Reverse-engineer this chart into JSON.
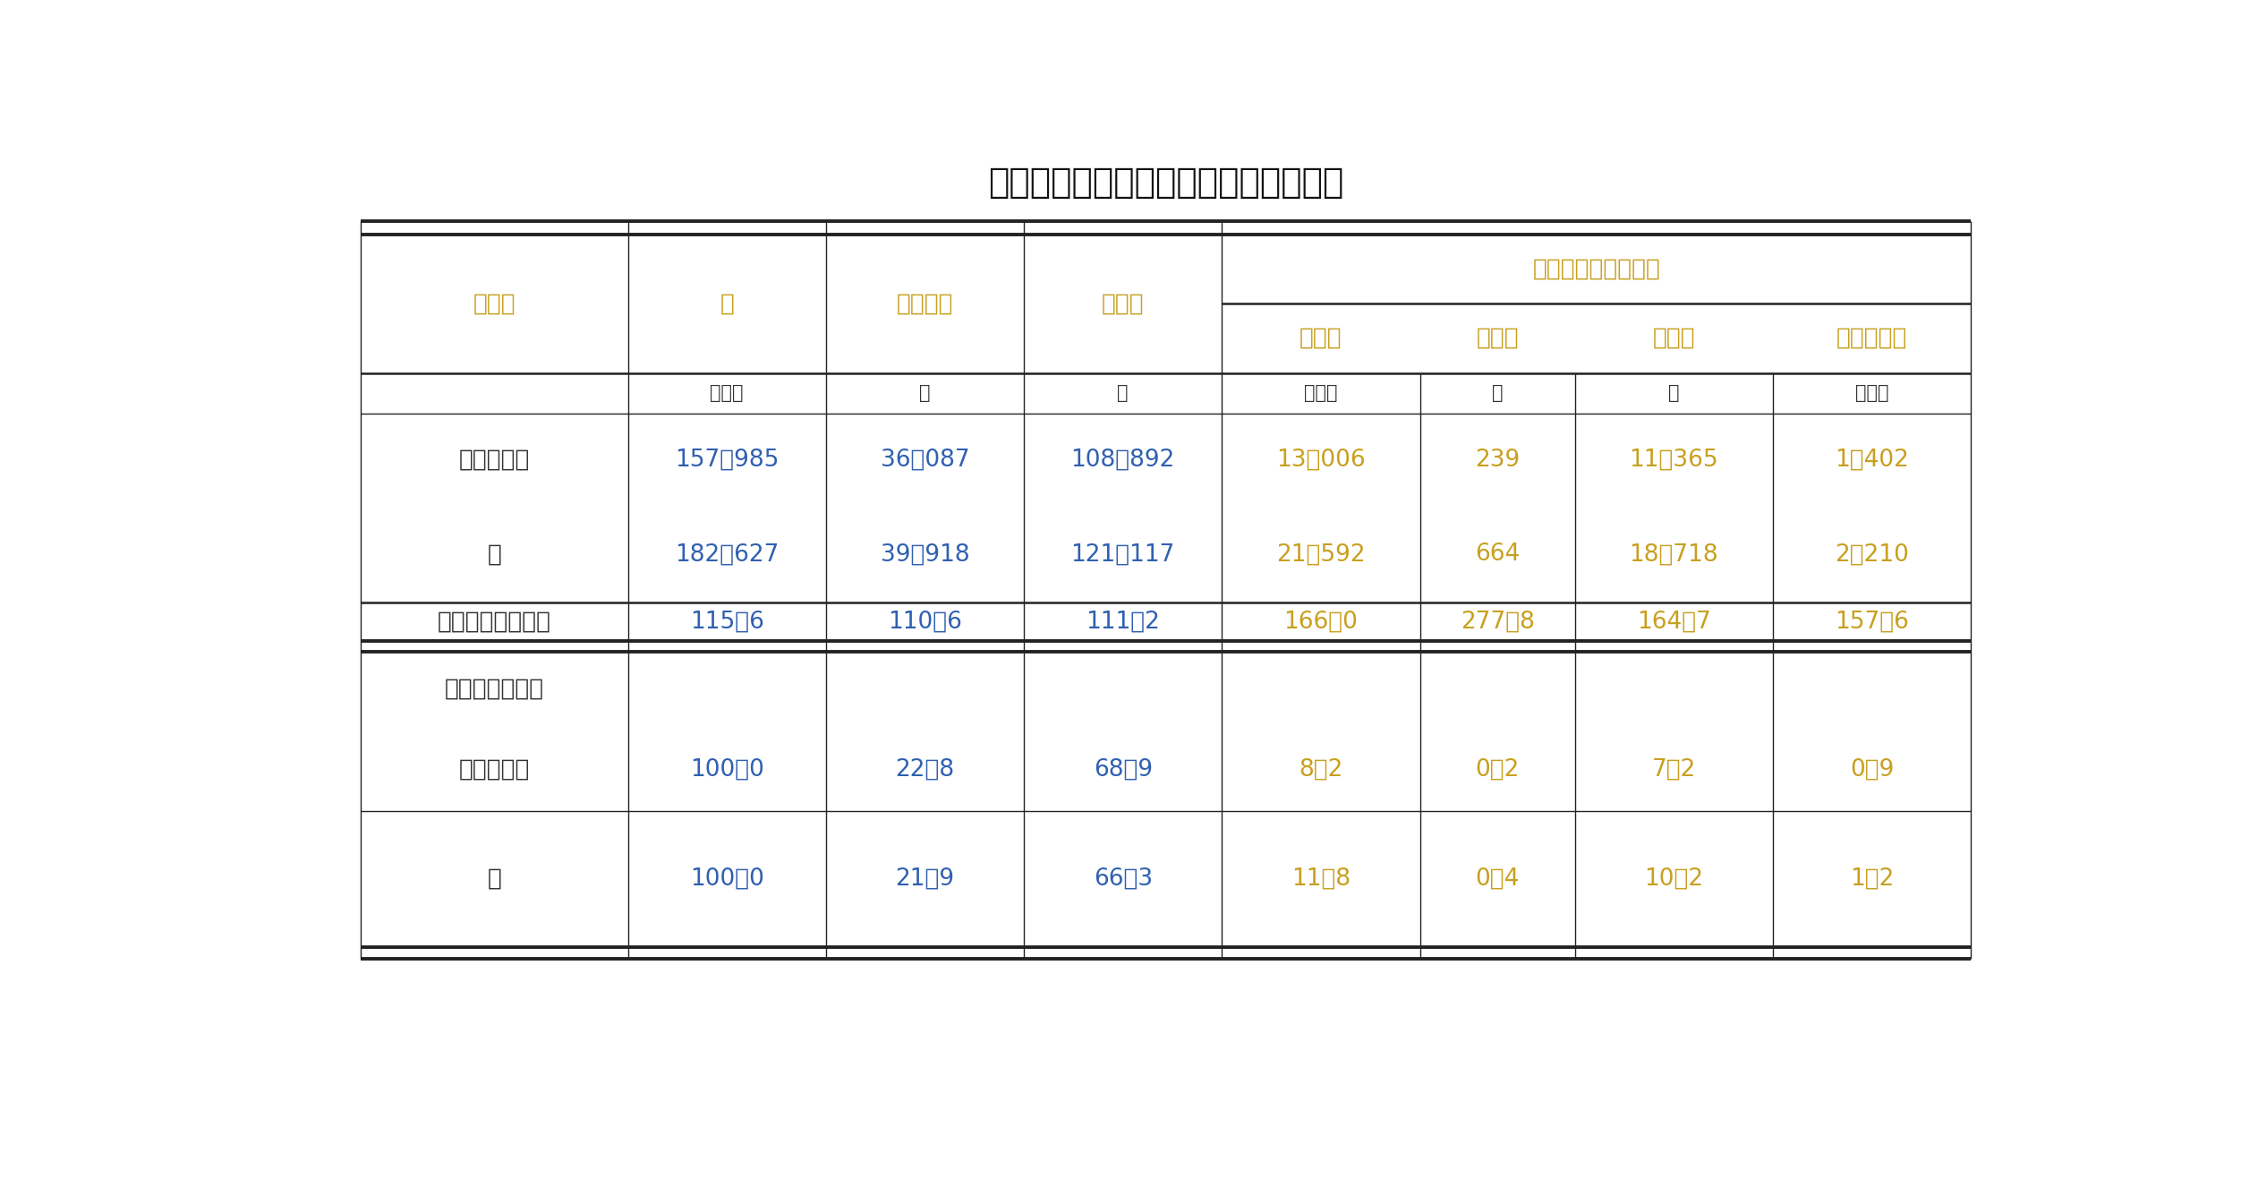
{
  "title": "表　野生鳥獣の解体頭・羽数（全国）",
  "background_color": "#ffffff",
  "col_header_color": "#c8a020",
  "num_color_blue": "#3060b0",
  "num_color_orange": "#c8a020",
  "num_color_black": "#333333",
  "unit_row": [
    "頭・羽",
    "頭",
    "頭",
    "頭・羽",
    "頭",
    "羽",
    "頭・羽"
  ],
  "rows": [
    {
      "label": "令和４年度",
      "values": [
        "157，985",
        "36，087",
        "108，892",
        "13，006",
        "239",
        "11，365",
        "1，402"
      ]
    },
    {
      "label": "５",
      "values": [
        "182，627",
        "39，918",
        "121，117",
        "21，592",
        "664",
        "18，718",
        "2，210"
      ]
    }
  ],
  "ratio_row": {
    "label": "対前年度比（％）",
    "values": [
      "115．6",
      "110．6",
      "111．2",
      "166．0",
      "277．8",
      "164．7",
      "157．6"
    ]
  },
  "composition_label": "構成割合（％）",
  "composition_rows": [
    {
      "label": "令和４年度",
      "values": [
        "100．0",
        "22．8",
        "68．9",
        "8．2",
        "0．2",
        "7．2",
        "0．9"
      ]
    },
    {
      "label": "５",
      "values": [
        "100．0",
        "21．9",
        "66．3",
        "11．8",
        "0．4",
        "10．2",
        "1．2"
      ]
    }
  ],
  "col_weights": [
    1.55,
    1.15,
    1.15,
    1.15,
    1.15,
    0.9,
    1.15,
    1.15
  ],
  "figsize": [
    25.23,
    13.17
  ]
}
